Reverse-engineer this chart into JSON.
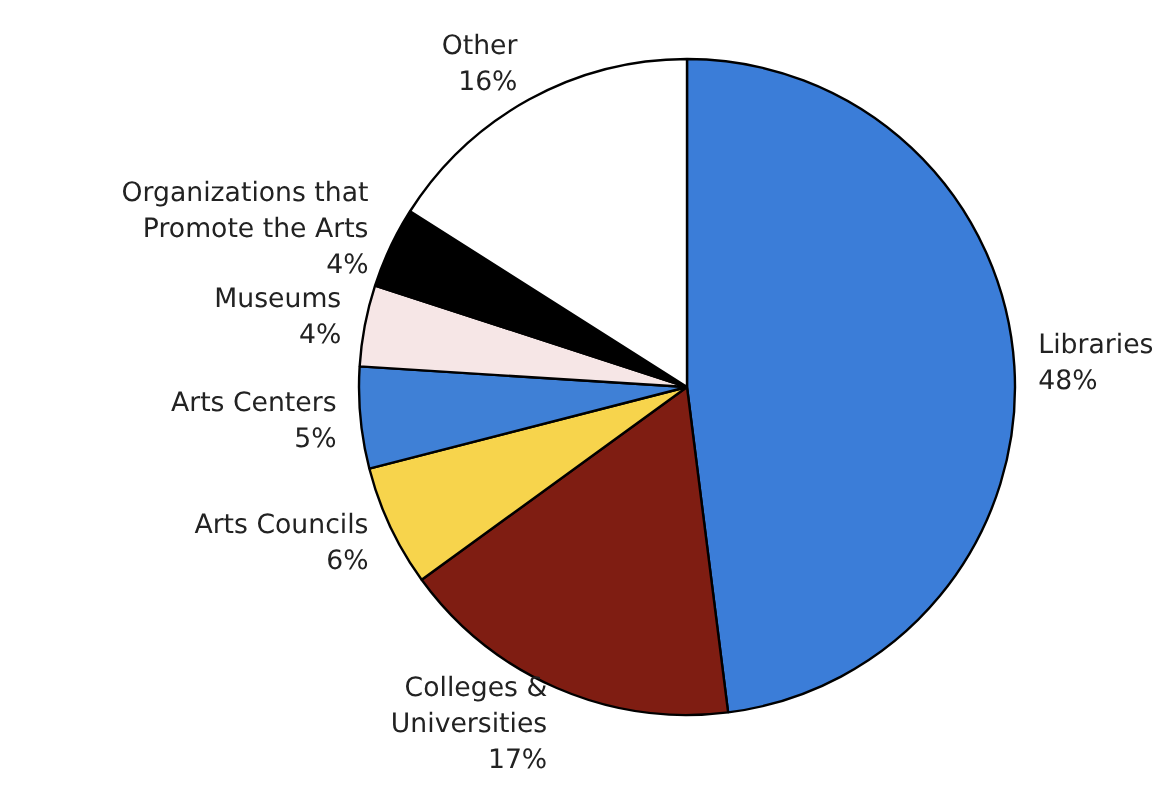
{
  "chart_data": {
    "type": "pie",
    "categories": [
      "Libraries",
      "Colleges & Universities",
      "Arts Councils",
      "Arts Centers",
      "Museums",
      "Organizations that Promote the Arts",
      "Other"
    ],
    "values": [
      48,
      17,
      6,
      5,
      4,
      4,
      16
    ],
    "value_labels": [
      "48%",
      "17%",
      "6%",
      "5%",
      "4%",
      "4%",
      "16%"
    ],
    "colors": [
      "#3b7dd8",
      "#7f1d12",
      "#f7d44c",
      "#3f80d6",
      "#f6e6e6",
      "#000000",
      "#ffffff"
    ]
  }
}
